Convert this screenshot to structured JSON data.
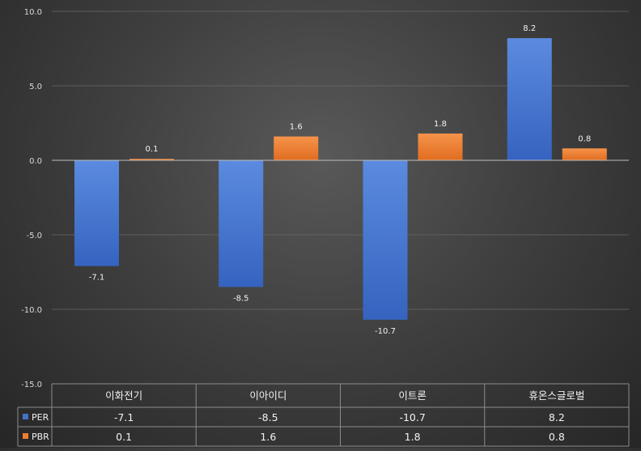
{
  "chart_data": {
    "type": "bar",
    "categories": [
      "이화전기",
      "이아이디",
      "이트론",
      "휴온스글로벌"
    ],
    "series": [
      {
        "name": "PER",
        "values": [
          -7.1,
          -8.5,
          -10.7,
          8.2
        ],
        "labels": [
          "-7.1",
          "-8.5",
          "-10.7",
          "8.2"
        ],
        "color": "#4472c4"
      },
      {
        "name": "PBR",
        "values": [
          0.1,
          1.6,
          1.8,
          0.8
        ],
        "labels": [
          "0.1",
          "1.6",
          "1.8",
          "0.8"
        ],
        "color": "#ed7d31"
      }
    ],
    "ylim": [
      -15,
      10
    ],
    "yticks": [
      "10.0",
      "5.0",
      "0.0",
      "-5.0",
      "-10.0",
      "-15.0"
    ],
    "grid": true,
    "legend": "data-table"
  }
}
